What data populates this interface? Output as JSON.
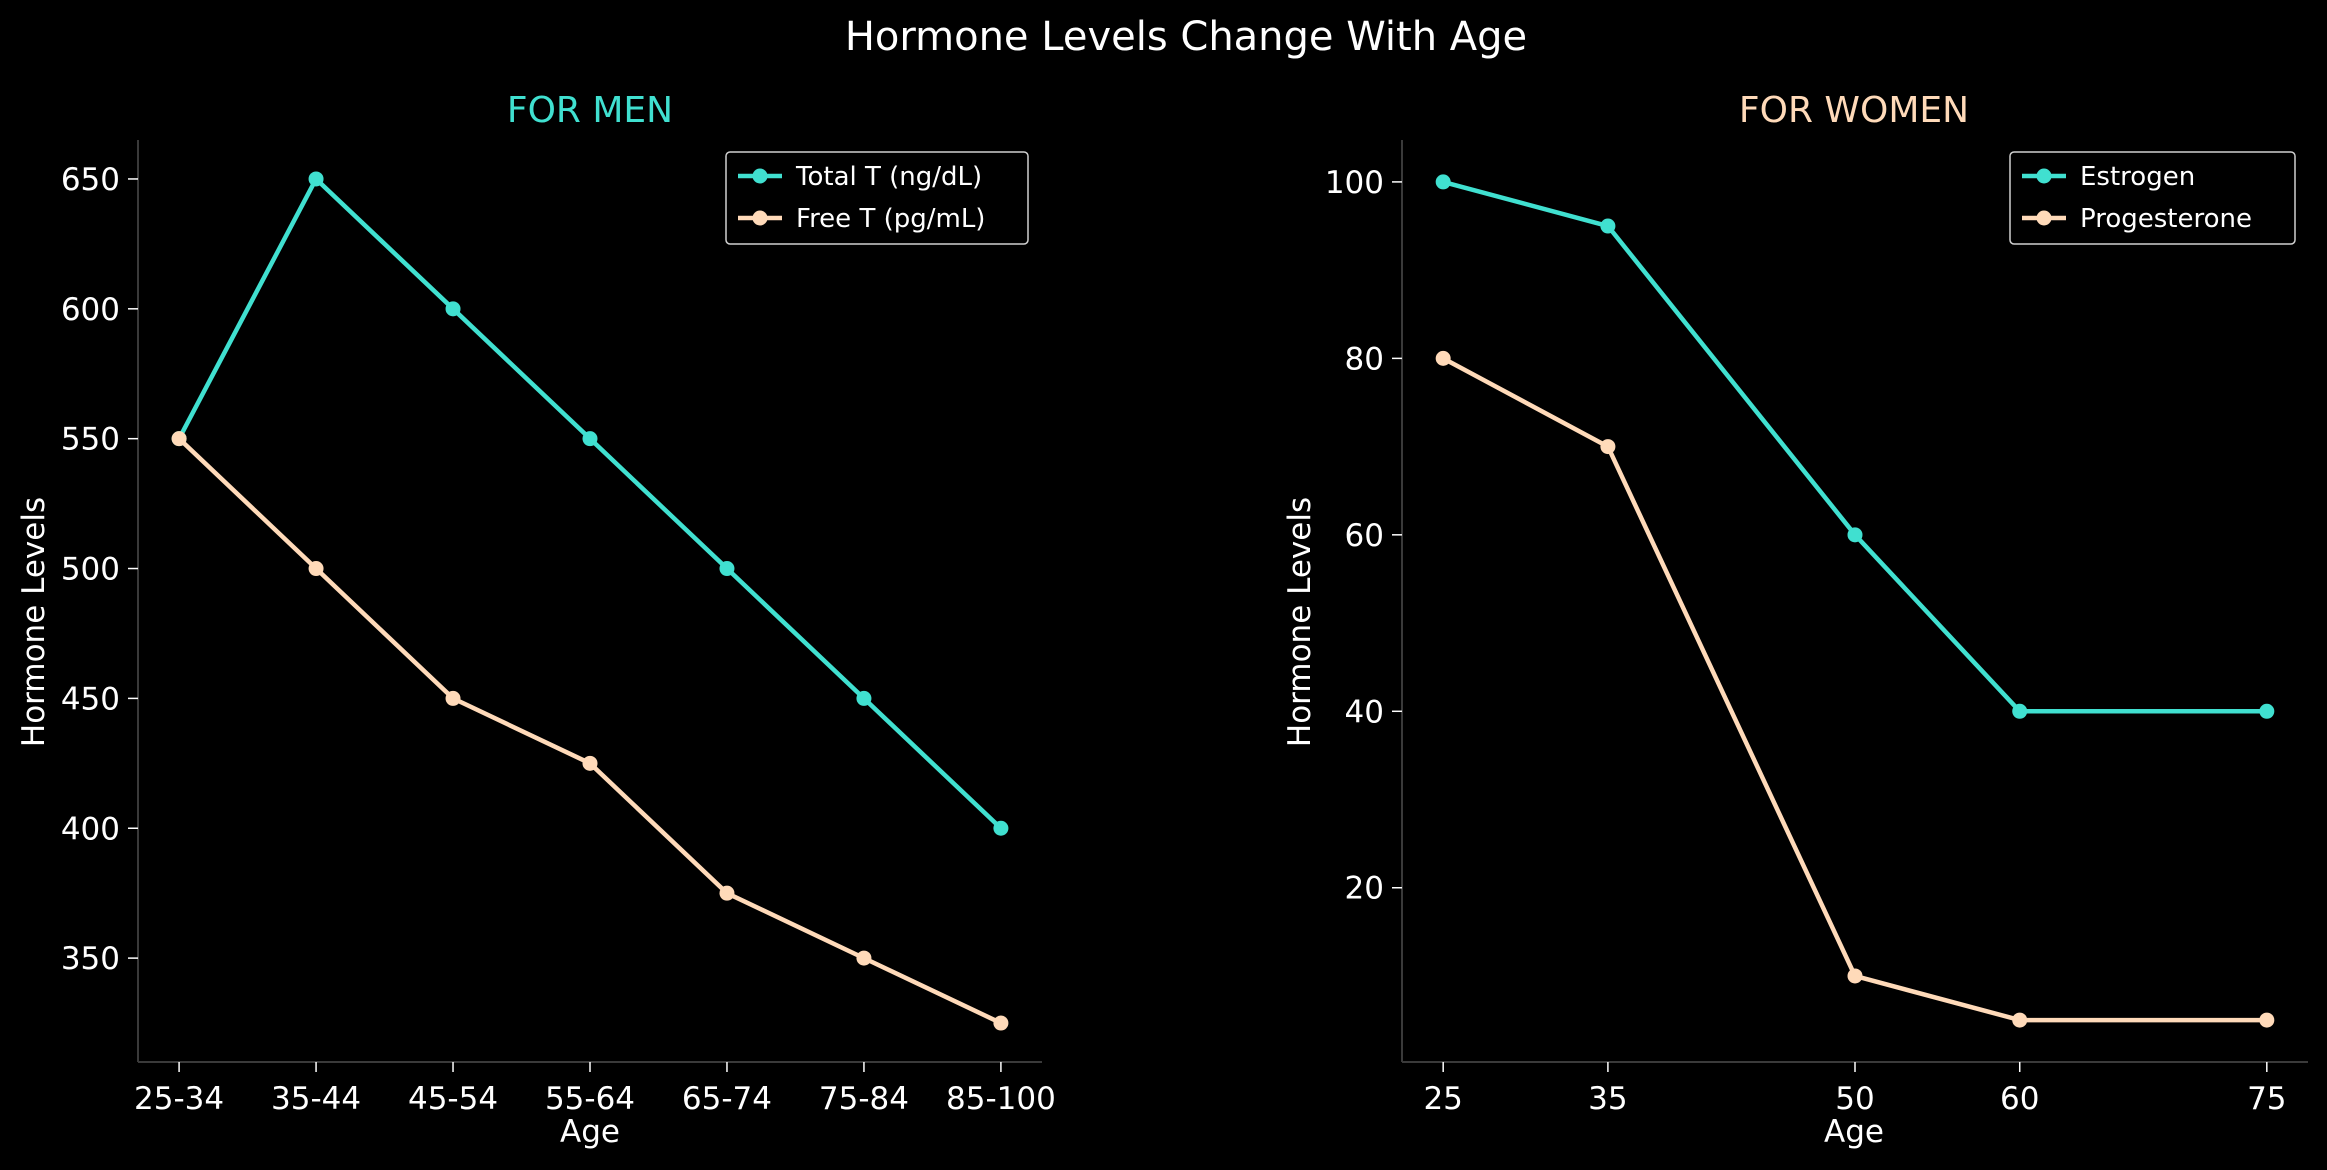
{
  "figure": {
    "title": "Hormone Levels Change With Age",
    "background": "#000000",
    "text_color": "#ffffff",
    "spine_color": "#3a3a3a"
  },
  "chart_data": [
    {
      "type": "line",
      "title": "FOR MEN",
      "title_color": "#40e0d0",
      "xlabel": "Age",
      "ylabel": "Hormone Levels",
      "x_kind": "category",
      "categories": [
        "25-34",
        "35-44",
        "45-54",
        "55-64",
        "65-74",
        "75-84",
        "85-100"
      ],
      "ylim": [
        310,
        665
      ],
      "yticks": [
        350,
        400,
        450,
        500,
        550,
        600,
        650
      ],
      "grid": false,
      "legend_position": "top-right",
      "series": [
        {
          "name": "Total T (ng/dL)",
          "color": "#40e0d0",
          "values": [
            550,
            650,
            600,
            550,
            500,
            450,
            400
          ]
        },
        {
          "name": "Free T (pg/mL)",
          "color": "#ffdab9",
          "values": [
            550,
            500,
            450,
            425,
            375,
            350,
            325
          ]
        }
      ]
    },
    {
      "type": "line",
      "title": "FOR WOMEN",
      "title_color": "#ffdab9",
      "xlabel": "Age",
      "ylabel": "Hormone Levels",
      "x_kind": "numeric",
      "x": [
        25,
        35,
        50,
        60,
        75
      ],
      "xlim": [
        22.5,
        77.5
      ],
      "xticks": [
        25,
        35,
        50,
        60,
        75
      ],
      "ylim": [
        0.25,
        104.75
      ],
      "yticks": [
        20,
        40,
        60,
        80,
        100
      ],
      "grid": false,
      "legend_position": "top-right",
      "series": [
        {
          "name": "Estrogen",
          "color": "#40e0d0",
          "values": [
            100,
            95,
            60,
            40,
            40
          ]
        },
        {
          "name": "Progesterone",
          "color": "#ffdab9",
          "values": [
            80,
            70,
            10,
            5,
            5
          ]
        }
      ]
    }
  ]
}
